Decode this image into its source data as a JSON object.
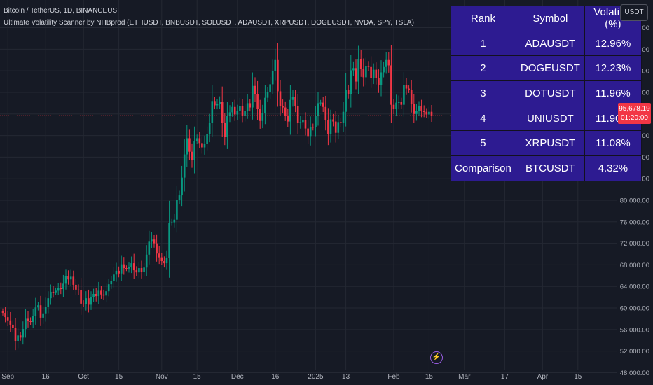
{
  "header": {
    "line1": "Bitcoin / TetherUS, 1D, BINANCEUS",
    "line2": "Ultimate Volatility Scanner by NHBprod (ETHUSDT, BNBUSDT, SOLUSDT, ADAUSDT, XRPUSDT, DOGEUSDT, NVDA, SPY, TSLA)"
  },
  "currency_badge": "USDT",
  "current_price": {
    "price_label": "95,678.19",
    "countdown": "01:20:00",
    "value": 95678.19,
    "color": "#f23645"
  },
  "table": {
    "headers": [
      "Rank",
      "Symbol",
      "Volatility (%)"
    ],
    "rows": [
      [
        "1",
        "ADAUSDT",
        "12.96%"
      ],
      [
        "2",
        "DOGEUSDT",
        "12.23%"
      ],
      [
        "3",
        "DOTUSDT",
        "11.96%"
      ],
      [
        "4",
        "UNIUSDT",
        "11.90%"
      ],
      [
        "5",
        "XRPUSDT",
        "11.08%"
      ],
      [
        "Comparison",
        "BTCUSDT",
        "4.32%"
      ]
    ]
  },
  "chart_data": {
    "type": "candlestick",
    "y_axis": {
      "range": [
        46500,
        113500
      ],
      "ticks": [
        "48,000.00",
        "52,000.00",
        "56,000.00",
        "60,000.00",
        "64,000.00",
        "68,000.00",
        "72,000.00",
        "76,000.00",
        "80,000.00",
        "84,000.00",
        "88,000.00",
        "92,000.00",
        "96,000.00",
        "100,000.00",
        "104,000.00",
        "108,000.00",
        "112,000.00"
      ],
      "tick_values": [
        48000,
        52000,
        56000,
        60000,
        64000,
        68000,
        72000,
        76000,
        80000,
        84000,
        88000,
        92000,
        96000,
        100000,
        104000,
        108000,
        112000
      ]
    },
    "x_axis": {
      "start_date": "2024-08-30",
      "ticks": [
        {
          "label": "Sep",
          "date": "2024-09-01"
        },
        {
          "label": "16",
          "date": "2024-09-16"
        },
        {
          "label": "Oct",
          "date": "2024-10-01"
        },
        {
          "label": "15",
          "date": "2024-10-15"
        },
        {
          "label": "Nov",
          "date": "2024-11-01"
        },
        {
          "label": "15",
          "date": "2024-11-15"
        },
        {
          "label": "Dec",
          "date": "2024-12-01"
        },
        {
          "label": "16",
          "date": "2024-12-16"
        },
        {
          "label": "2025",
          "date": "2025-01-01"
        },
        {
          "label": "13",
          "date": "2025-01-13"
        },
        {
          "label": "Feb",
          "date": "2025-02-01"
        },
        {
          "label": "15",
          "date": "2025-02-15"
        },
        {
          "label": "Mar",
          "date": "2025-03-01"
        },
        {
          "label": "17",
          "date": "2025-03-17"
        },
        {
          "label": "Apr",
          "date": "2025-04-01"
        },
        {
          "label": "15",
          "date": "2025-04-15"
        }
      ]
    },
    "colors": {
      "up": "#089981",
      "down": "#f23645",
      "grid": "#242833",
      "last_price_line": "#f23645"
    },
    "last_price": 95678.19,
    "closes": [
      59100,
      58300,
      57700,
      56900,
      56300,
      53900,
      54900,
      54500,
      56100,
      58000,
      57600,
      57400,
      58500,
      60100,
      60500,
      58200,
      59000,
      60200,
      61800,
      63000,
      62900,
      63200,
      63700,
      63500,
      64500,
      65900,
      65300,
      65800,
      64300,
      63400,
      63300,
      60800,
      60700,
      61800,
      60600,
      62000,
      62600,
      62200,
      63200,
      62500,
      62300,
      63100,
      64400,
      65000,
      66200,
      66900,
      66400,
      68100,
      67400,
      67300,
      67600,
      68300,
      67000,
      66600,
      67400,
      66700,
      67500,
      69900,
      72300,
      72700,
      72000,
      70100,
      69400,
      68700,
      68300,
      69300,
      75800,
      75900,
      76400,
      80000,
      80900,
      84200,
      88500,
      91500,
      89000,
      87400,
      91000,
      91500,
      90600,
      89800,
      90500,
      92300,
      94300,
      98400,
      97600,
      97900,
      98200,
      94400,
      91800,
      95700,
      96300,
      97300,
      95900,
      96500,
      97400,
      95700,
      96600,
      98000,
      97200,
      101200,
      99700,
      97000,
      94700,
      96200,
      99000,
      100000,
      101500,
      104000,
      106000,
      100200,
      97500,
      97200,
      95700,
      94600,
      98600,
      99100,
      97500,
      94300,
      94500,
      94900,
      93300,
      91900,
      93600,
      93500,
      95700,
      98000,
      98100,
      97300,
      94800,
      92300,
      95000,
      94600,
      92500,
      94500,
      94300,
      96400,
      100500,
      99700,
      104100,
      104500,
      102000,
      106100,
      104400,
      102800,
      104900,
      104700,
      102600,
      104200,
      102700,
      101300,
      103700,
      104700,
      106000,
      105000,
      97700,
      96900,
      98100,
      98200,
      97700,
      101300,
      100700,
      100400,
      97900,
      96000,
      96500,
      97400,
      96500,
      96400,
      95900,
      96400,
      95678
    ]
  }
}
